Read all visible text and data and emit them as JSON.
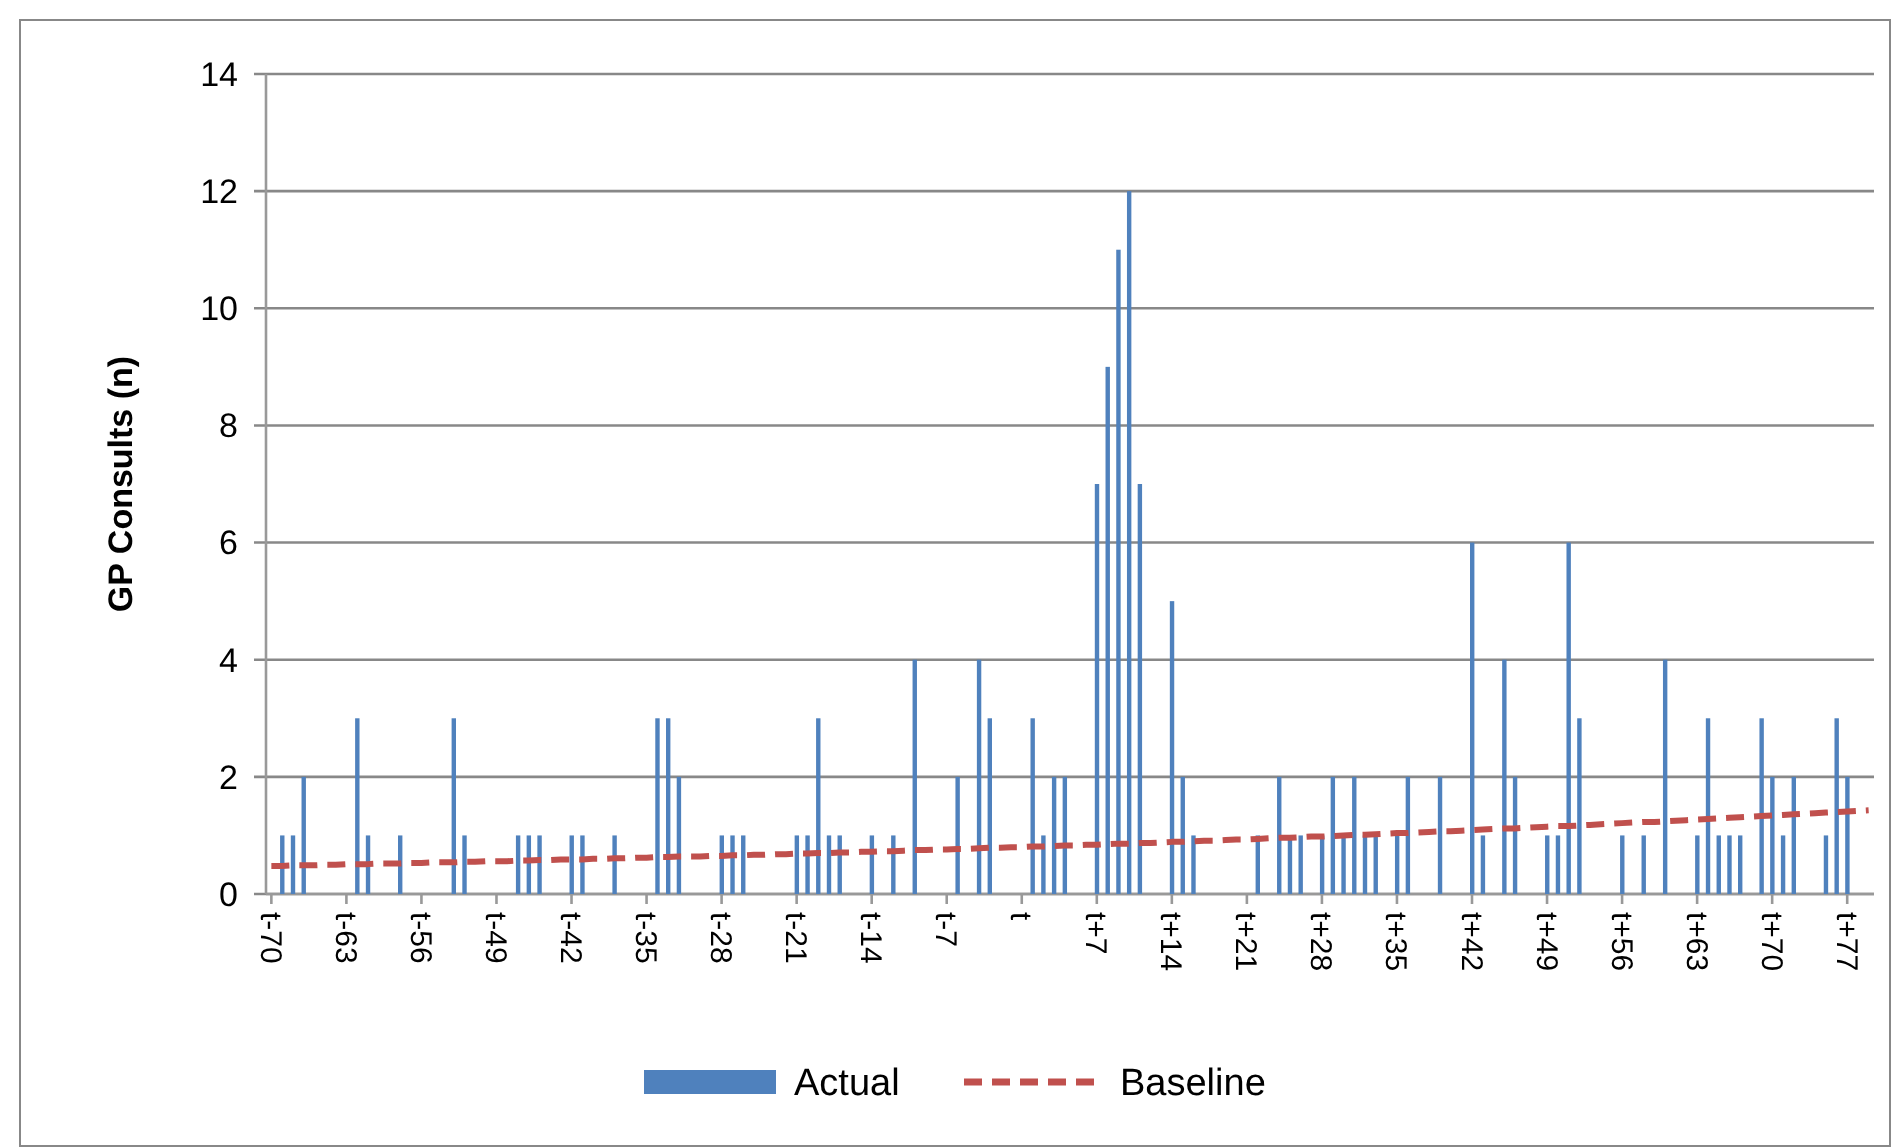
{
  "chart_data": {
    "type": "bar",
    "ylabel": "GP Consults (n)",
    "categories": [
      "t-70",
      null,
      null,
      null,
      null,
      null,
      null,
      "t-63",
      null,
      null,
      null,
      null,
      null,
      null,
      "t-56",
      null,
      null,
      null,
      null,
      null,
      null,
      "t-49",
      null,
      null,
      null,
      null,
      null,
      null,
      "t-42",
      null,
      null,
      null,
      null,
      null,
      null,
      "t-35",
      null,
      null,
      null,
      null,
      null,
      null,
      "t-28",
      null,
      null,
      null,
      null,
      null,
      null,
      "t-21",
      null,
      null,
      null,
      null,
      null,
      null,
      "t-14",
      null,
      null,
      null,
      null,
      null,
      null,
      "t-7",
      null,
      null,
      null,
      null,
      null,
      null,
      "t",
      null,
      null,
      null,
      null,
      null,
      null,
      "t+7",
      null,
      null,
      null,
      null,
      null,
      null,
      "t+14",
      null,
      null,
      null,
      null,
      null,
      null,
      "t+21",
      null,
      null,
      null,
      null,
      null,
      null,
      "t+28",
      null,
      null,
      null,
      null,
      null,
      null,
      "t+35",
      null,
      null,
      null,
      null,
      null,
      null,
      "t+42",
      null,
      null,
      null,
      null,
      null,
      null,
      "t+49",
      null,
      null,
      null,
      null,
      null,
      null,
      "t+56",
      null,
      null,
      null,
      null,
      null,
      null,
      "t+63",
      null,
      null,
      null,
      null,
      null,
      null,
      "t+70",
      null,
      null,
      null,
      null,
      null,
      null,
      "t+77",
      null,
      null
    ],
    "series": [
      {
        "name": "Actual",
        "color": "#4f81bd",
        "values": [
          0,
          1,
          1,
          2,
          0,
          0,
          0,
          0,
          3,
          1,
          0,
          0,
          1,
          0,
          0,
          0,
          0,
          3,
          1,
          0,
          0,
          0,
          0,
          1,
          1,
          1,
          0,
          0,
          1,
          1,
          0,
          0,
          1,
          0,
          0,
          0,
          3,
          3,
          2,
          0,
          0,
          0,
          1,
          1,
          1,
          0,
          0,
          0,
          0,
          1,
          1,
          3,
          1,
          1,
          0,
          0,
          1,
          0,
          1,
          0,
          4,
          0,
          0,
          0,
          2,
          0,
          4,
          3,
          0,
          0,
          0,
          3,
          1,
          2,
          2,
          0,
          0,
          7,
          9,
          11,
          12,
          7,
          0,
          0,
          5,
          2,
          1,
          0,
          0,
          0,
          0,
          0,
          1,
          0,
          2,
          1,
          1,
          0,
          1,
          2,
          1,
          2,
          1,
          1,
          0,
          1,
          2,
          0,
          0,
          2,
          0,
          0,
          6,
          1,
          0,
          4,
          2,
          0,
          0,
          1,
          1,
          6,
          3,
          0,
          0,
          0,
          1,
          0,
          1,
          0,
          4,
          0,
          0,
          1,
          3,
          1,
          1,
          1,
          0,
          3,
          2,
          1,
          2,
          0,
          0,
          1,
          3,
          2,
          0,
          0
        ]
      },
      {
        "name": "Baseline",
        "type": "line",
        "color": "#c0504d",
        "line_style": "dashed",
        "values": [
          0.48,
          0.48,
          0.49,
          0.49,
          0.49,
          0.5,
          0.5,
          0.51,
          0.51,
          0.51,
          0.52,
          0.52,
          0.52,
          0.53,
          0.53,
          0.54,
          0.54,
          0.54,
          0.55,
          0.55,
          0.56,
          0.56,
          0.56,
          0.57,
          0.57,
          0.58,
          0.58,
          0.59,
          0.59,
          0.59,
          0.6,
          0.6,
          0.61,
          0.61,
          0.62,
          0.62,
          0.63,
          0.63,
          0.64,
          0.64,
          0.64,
          0.65,
          0.65,
          0.66,
          0.66,
          0.67,
          0.67,
          0.68,
          0.68,
          0.69,
          0.69,
          0.7,
          0.7,
          0.71,
          0.71,
          0.72,
          0.72,
          0.73,
          0.73,
          0.74,
          0.75,
          0.75,
          0.76,
          0.76,
          0.77,
          0.77,
          0.78,
          0.79,
          0.79,
          0.8,
          0.8,
          0.81,
          0.81,
          0.82,
          0.83,
          0.83,
          0.84,
          0.84,
          0.85,
          0.86,
          0.86,
          0.87,
          0.87,
          0.88,
          0.89,
          0.89,
          0.9,
          0.91,
          0.91,
          0.92,
          0.93,
          0.93,
          0.94,
          0.95,
          0.96,
          0.96,
          0.97,
          0.98,
          0.98,
          0.99,
          1.0,
          1.01,
          1.01,
          1.02,
          1.03,
          1.04,
          1.04,
          1.05,
          1.06,
          1.07,
          1.07,
          1.08,
          1.09,
          1.1,
          1.11,
          1.12,
          1.12,
          1.13,
          1.14,
          1.15,
          1.16,
          1.16,
          1.17,
          1.18,
          1.19,
          1.2,
          1.21,
          1.22,
          1.23,
          1.23,
          1.24,
          1.25,
          1.26,
          1.27,
          1.28,
          1.29,
          1.3,
          1.31,
          1.32,
          1.33,
          1.34,
          1.35,
          1.36,
          1.37,
          1.38,
          1.39,
          1.4,
          1.41,
          1.42,
          1.43
        ]
      }
    ],
    "ylim": [
      0,
      14
    ],
    "yticks": [
      0,
      2,
      4,
      6,
      8,
      10,
      12,
      14
    ],
    "grid": "y",
    "legend": "bottom"
  }
}
